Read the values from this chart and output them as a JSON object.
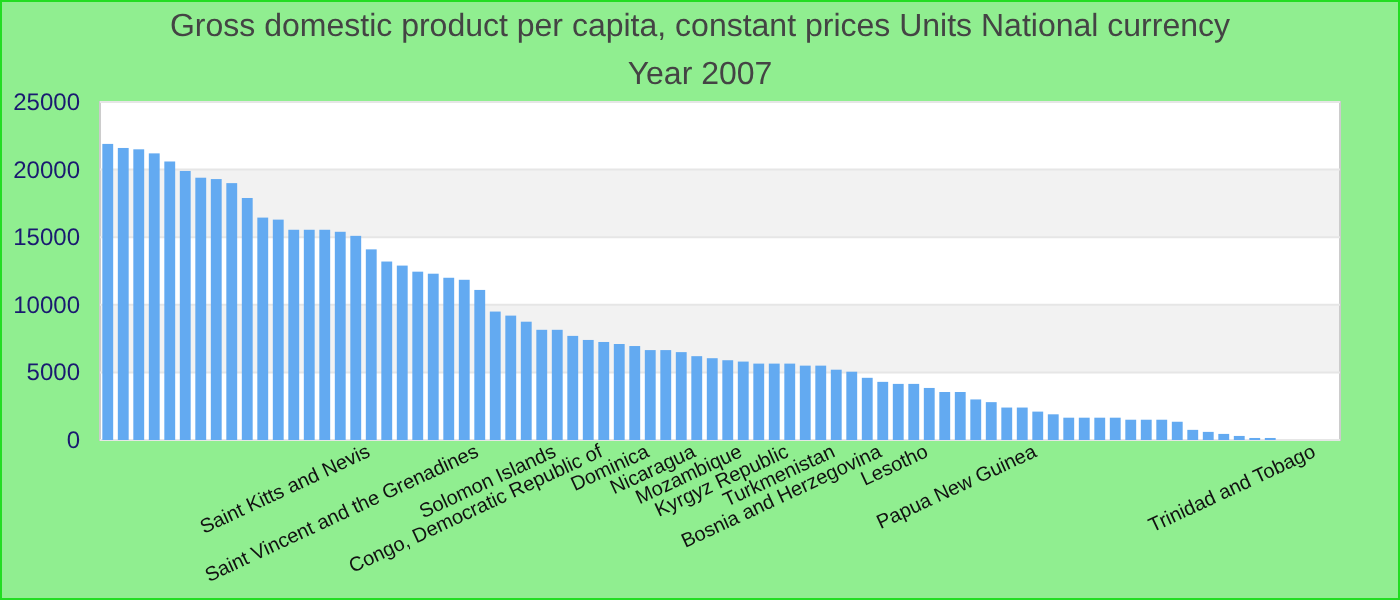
{
  "chart_data": {
    "type": "bar",
    "title": "Gross domestic product per capita, constant prices Units National currency",
    "subtitle": "Year 2007",
    "categories": [
      null,
      null,
      null,
      null,
      null,
      null,
      null,
      null,
      null,
      null,
      null,
      null,
      null,
      null,
      null,
      null,
      null,
      "Saint Kitts and Nevis",
      null,
      null,
      null,
      null,
      null,
      null,
      "Saint Vincent and the Grenadines",
      null,
      null,
      null,
      null,
      "Solomon Islands",
      null,
      null,
      "Congo, Democratic Republic of",
      null,
      null,
      "Dominica",
      null,
      null,
      "Nicaragua",
      null,
      null,
      "Mozambique",
      null,
      null,
      "Kyrgyz Republic",
      null,
      null,
      "Turkmenistan",
      null,
      null,
      "Bosnia and Herzegovina",
      null,
      null,
      "Lesotho",
      null,
      null,
      null,
      null,
      null,
      null,
      "Papua New Guinea",
      null,
      null,
      null,
      null,
      null,
      null,
      null,
      null,
      null,
      null,
      null,
      null,
      null,
      null,
      null,
      null,
      null,
      "Trinidad and Tobago",
      null
    ],
    "values": [
      21900,
      21600,
      21500,
      21200,
      20600,
      19900,
      19400,
      19300,
      19000,
      17900,
      16450,
      16300,
      15550,
      15550,
      15550,
      15400,
      15100,
      14100,
      13200,
      12900,
      12450,
      12300,
      12000,
      11850,
      11100,
      9500,
      9200,
      8750,
      8150,
      8150,
      7700,
      7400,
      7250,
      7100,
      6950,
      6650,
      6650,
      6500,
      6200,
      6050,
      5900,
      5800,
      5650,
      5650,
      5650,
      5500,
      5500,
      5200,
      5050,
      4600,
      4300,
      4150,
      4150,
      3850,
      3550,
      3550,
      3000,
      2800,
      2400,
      2400,
      2100,
      1900,
      1650,
      1650,
      1650,
      1650,
      1500,
      1500,
      1500,
      1350,
      750,
      600,
      450,
      300,
      150,
      150,
      null,
      null,
      null,
      null
    ],
    "color": "#63aaf1",
    "ylim": [
      0,
      25000
    ],
    "yticks": [
      0,
      5000,
      10000,
      15000,
      20000,
      25000
    ],
    "grid": "y"
  }
}
